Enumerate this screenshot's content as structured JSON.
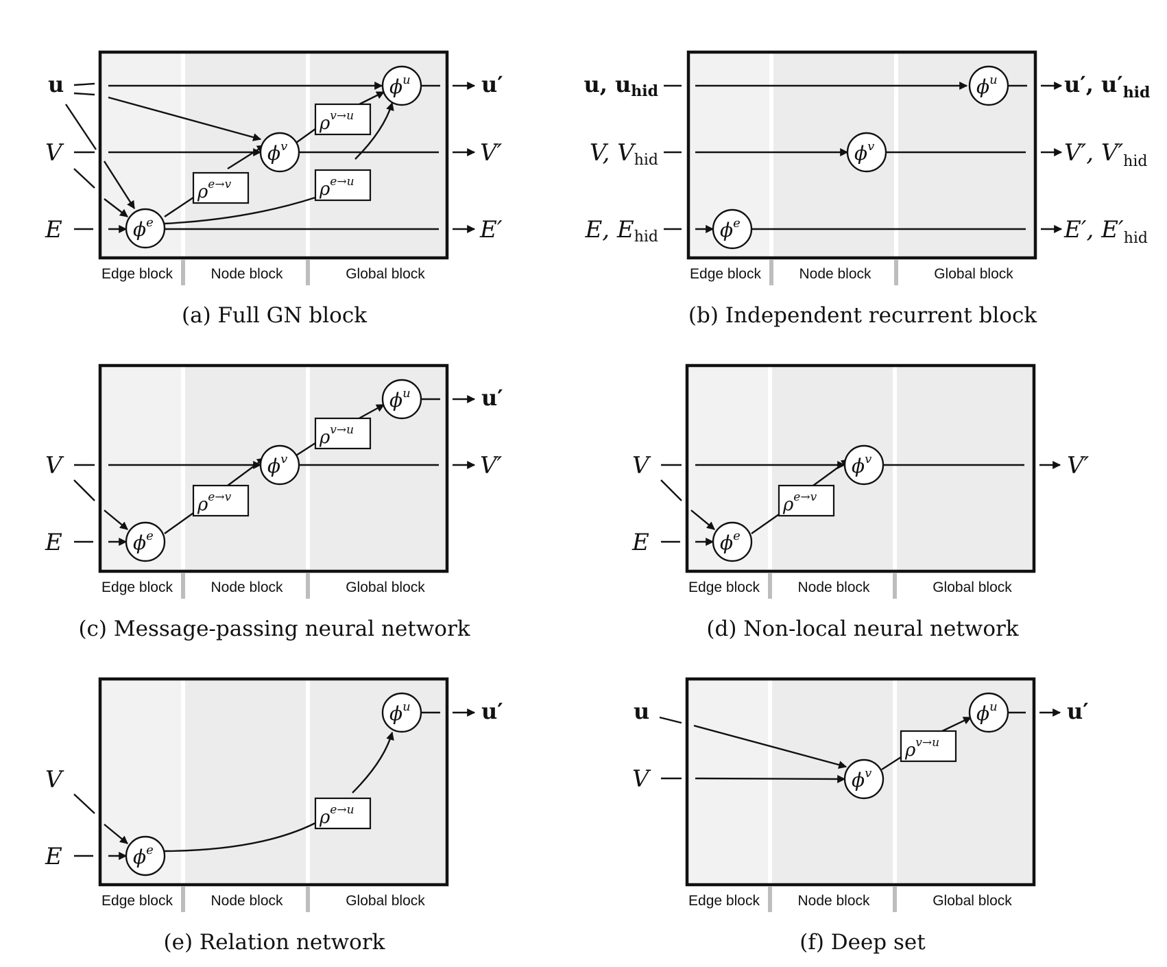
{
  "regions": [
    "Edge block",
    "Node block",
    "Global block"
  ],
  "panels": [
    {
      "caption": "(a) Full GN block",
      "in_u": "u",
      "in_v": "V",
      "in_e": "E",
      "out_u": "u′",
      "out_v": "V′",
      "out_e": "E′",
      "nodes": {
        "phi_e": "ϕ",
        "phi_e_sup": "e",
        "phi_v": "ϕ",
        "phi_v_sup": "v",
        "phi_u": "ϕ",
        "phi_u_sup": "u"
      },
      "aggs": {
        "rho": "ρ",
        "ev": "e→v",
        "vu": "v→u",
        "eu": "e→u"
      }
    },
    {
      "caption": "(b) Independent recurrent block",
      "in_u": "u, u",
      "in_u_sub": "hid",
      "in_v": "V, V",
      "in_v_sub": "hid",
      "in_e": "E, E",
      "in_e_sub": "hid",
      "out_u": "u′, u′",
      "out_u_sub": "hid",
      "out_v": "V′, V′",
      "out_v_sub": "hid",
      "out_e": "E′, E′",
      "out_e_sub": "hid"
    },
    {
      "caption": "(c) Message-passing neural network",
      "in_v": "V",
      "in_e": "E",
      "out_u": "u′",
      "out_v": "V′"
    },
    {
      "caption": "(d) Non-local neural network",
      "in_v": "V",
      "in_e": "E",
      "out_v": "V′"
    },
    {
      "caption": "(e) Relation network",
      "in_v": "V",
      "in_e": "E",
      "out_u": "u′"
    },
    {
      "caption": "(f) Deep set",
      "in_u": "u",
      "in_v": "V",
      "out_u": "u′"
    }
  ]
}
